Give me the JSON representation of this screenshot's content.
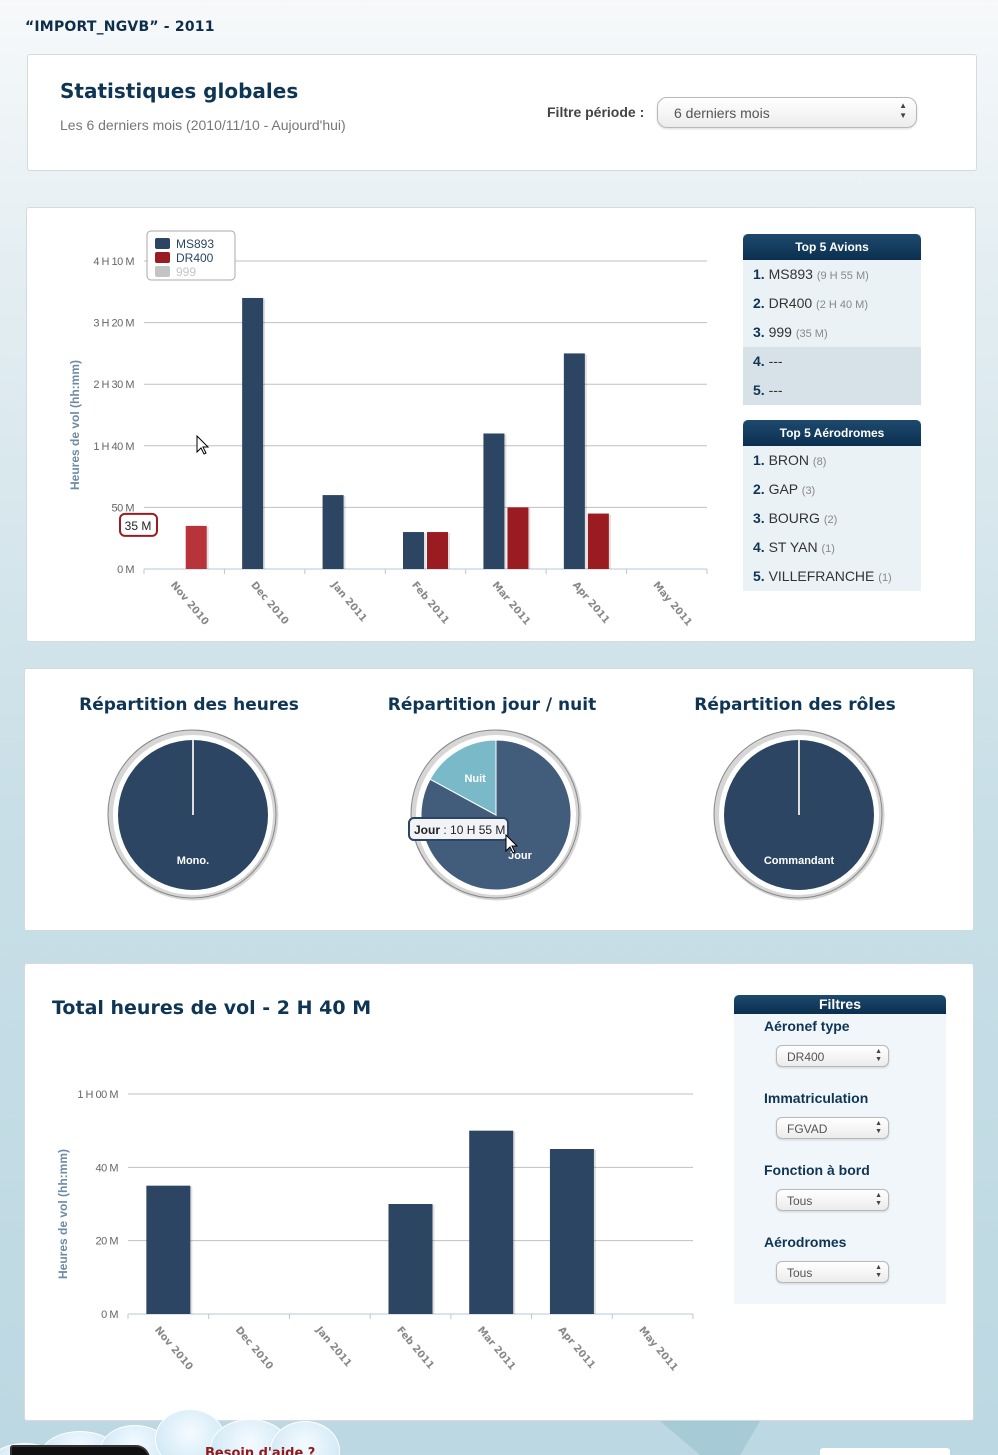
{
  "page_title": "“IMPORT_NGVB” - 2011",
  "header": {
    "title": "Statistiques globales",
    "subtitle": "Les 6 derniers mois (2010/11/10 - Aujourd'hui)",
    "filter_label": "Filtre période :",
    "filter_value": "6 derniers mois"
  },
  "colors": {
    "ms893": "#2c4563",
    "dr400": "#9b1c20",
    "dr400_hover": "#b8333a",
    "c999": "#c4c4c4",
    "jour": "#425c7b",
    "nuit": "#7ab9c8",
    "navy": "#0f3555"
  },
  "chart_data": [
    {
      "type": "bar",
      "title": "",
      "xlabel": "",
      "ylabel": "Heures de vol (hh:mm)",
      "unit": "minutes",
      "categories": [
        "Nov 2010",
        "Dec 2010",
        "Jan 2011",
        "Feb 2011",
        "Mar 2011",
        "Apr 2011",
        "May 2011"
      ],
      "y_ticks": [
        {
          "value": 0,
          "label": "0 M"
        },
        {
          "value": 50,
          "label": "50 M"
        },
        {
          "value": 100,
          "label": "1 H 40 M"
        },
        {
          "value": 150,
          "label": "2 H 30 M"
        },
        {
          "value": 200,
          "label": "3 H 20 M"
        },
        {
          "value": 250,
          "label": "4 H 10 M"
        }
      ],
      "ylim": [
        0,
        250
      ],
      "grid": true,
      "legend_position": "top-left",
      "series": [
        {
          "name": "MS893",
          "color_key": "ms893",
          "visible": true,
          "values": [
            0,
            220,
            60,
            30,
            110,
            175,
            0
          ]
        },
        {
          "name": "DR400",
          "color_key": "dr400",
          "visible": true,
          "values": [
            35,
            0,
            0,
            30,
            50,
            45,
            0
          ]
        },
        {
          "name": "999",
          "color_key": "c999",
          "visible": false,
          "values": []
        }
      ],
      "tooltip": {
        "text": "35 M",
        "series": "DR400",
        "category": "Nov 2010"
      }
    },
    {
      "type": "pie",
      "title": "Répartition des heures",
      "slices": [
        {
          "label": "Mono.",
          "value": 100,
          "color_key": "ms893"
        }
      ]
    },
    {
      "type": "pie",
      "title": "Répartition jour / nuit",
      "slices": [
        {
          "label": "Jour",
          "value": 655,
          "color_key": "jour"
        },
        {
          "label": "Nuit",
          "value": 135,
          "color_key": "nuit"
        }
      ],
      "tooltip": {
        "label": "Jour",
        "value": "10 H 55 M"
      }
    },
    {
      "type": "pie",
      "title": "Répartition des rôles",
      "slices": [
        {
          "label": "Commandant",
          "value": 100,
          "color_key": "ms893"
        }
      ]
    },
    {
      "type": "bar",
      "title": "Total heures de vol - 2 H 40 M",
      "xlabel": "",
      "ylabel": "Heures de vol (hh:mm)",
      "unit": "minutes",
      "categories": [
        "Nov 2010",
        "Dec 2010",
        "Jan 2011",
        "Feb 2011",
        "Mar 2011",
        "Apr 2011",
        "May 2011"
      ],
      "y_ticks": [
        {
          "value": 0,
          "label": "0 M"
        },
        {
          "value": 20,
          "label": "20 M"
        },
        {
          "value": 40,
          "label": "40 M"
        },
        {
          "value": 60,
          "label": "1 H 00 M"
        }
      ],
      "ylim": [
        0,
        60
      ],
      "grid": true,
      "series": [
        {
          "name": "DR400",
          "color_key": "ms893",
          "values": [
            35,
            0,
            0,
            30,
            50,
            45,
            0
          ]
        }
      ]
    }
  ],
  "top5_avions": {
    "title": "Top 5 Avions",
    "items": [
      {
        "rank": "1.",
        "name": "MS893",
        "count": "(9 H 55 M)"
      },
      {
        "rank": "2.",
        "name": "DR400",
        "count": "(2 H 40 M)"
      },
      {
        "rank": "3.",
        "name": "999",
        "count": "(35 M)"
      },
      {
        "rank": "4.",
        "name": "---",
        "count": ""
      },
      {
        "rank": "5.",
        "name": "---",
        "count": ""
      }
    ]
  },
  "top5_aerodromes": {
    "title": "Top 5 Aérodromes",
    "items": [
      {
        "rank": "1.",
        "name": "BRON",
        "count": "(8)"
      },
      {
        "rank": "2.",
        "name": "GAP",
        "count": "(3)"
      },
      {
        "rank": "3.",
        "name": "BOURG",
        "count": "(2)"
      },
      {
        "rank": "4.",
        "name": "ST YAN",
        "count": "(1)"
      },
      {
        "rank": "5.",
        "name": "VILLEFRANCHE",
        "count": "(1)"
      }
    ]
  },
  "filters": {
    "title": "Filtres",
    "aeronef_label": "Aéronef type",
    "aeronef_value": "DR400",
    "immat_label": "Immatriculation",
    "immat_value": "FGVAD",
    "fonction_label": "Fonction à bord",
    "fonction_value": "Tous",
    "aerodromes_label": "Aérodromes",
    "aerodromes_value": "Tous"
  },
  "footer": {
    "help_text": "Besoin d'aide ?"
  }
}
